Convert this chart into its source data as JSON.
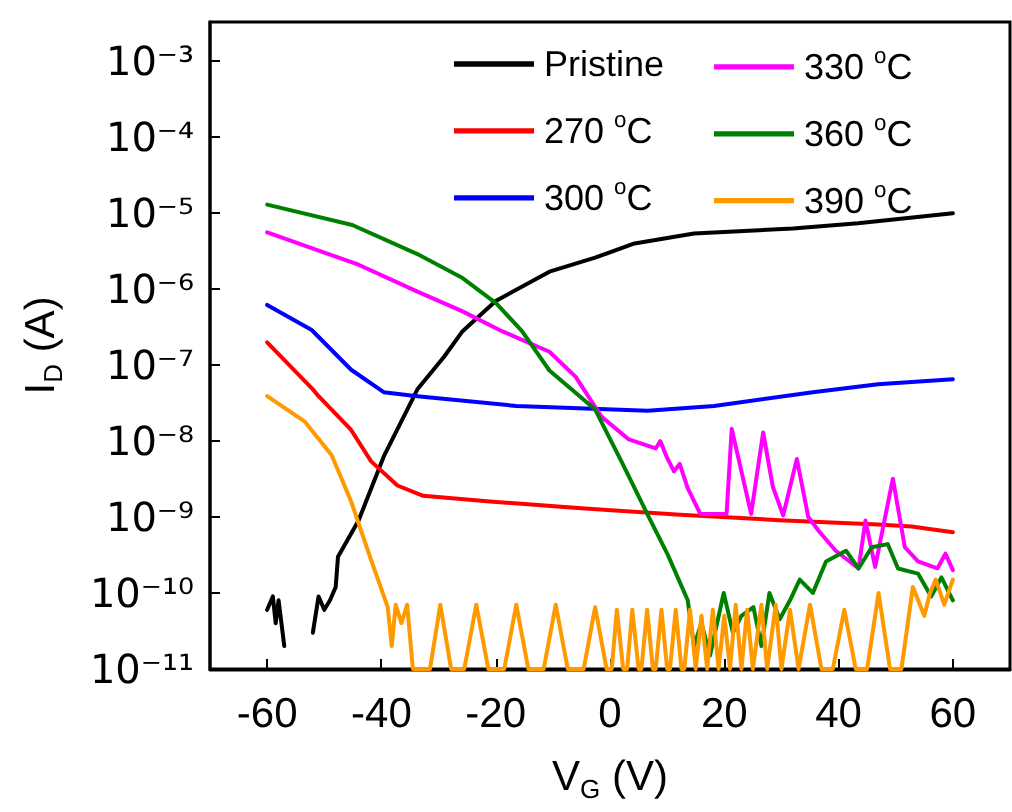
{
  "chart_data": {
    "type": "line",
    "xlabel": "V$_{G}$ (V)",
    "ylabel": "I$_{D}$ (A)",
    "log": "y",
    "grid": false,
    "legend": "top right",
    "marker": "none",
    "line_style": "solid",
    "xlim": [
      -70,
      70
    ],
    "xticks": [
      -60,
      -40,
      -20,
      0,
      20,
      40,
      60
    ],
    "ylim": [
      1e-11,
      0.0033
    ],
    "yticks": [
      {
        "value": 1e-11,
        "label": "10⁻¹¹"
      },
      {
        "value": 1e-10,
        "label": "10⁻¹⁰"
      },
      {
        "value": 1e-09,
        "label": "10⁻⁹"
      },
      {
        "value": 1e-08,
        "label": "10⁻⁸"
      },
      {
        "value": 1e-07,
        "label": "10⁻⁷"
      },
      {
        "value": 1e-06,
        "label": "10⁻⁶"
      },
      {
        "value": 1e-05,
        "label": "10⁻⁵"
      },
      {
        "value": 0.0001,
        "label": "10⁻⁴"
      },
      {
        "value": 0.001,
        "label": "10⁻³"
      }
    ],
    "series": [
      {
        "name": "Pristine",
        "color": "#000000",
        "x": [
          -60,
          -59,
          -58.5,
          -58,
          -57,
          -56.5,
          -52,
          -51,
          -50,
          -49,
          -48,
          -47.6,
          -44,
          -39.5,
          -33.7,
          -29,
          -25.8,
          -20,
          -10.6,
          -2.6,
          4.3,
          14.7,
          32,
          43.4,
          60
        ],
        "values": [
          6e-11,
          9e-11,
          4e-11,
          8e-11,
          2e-11,
          null,
          3e-11,
          9e-11,
          6e-11,
          8e-11,
          1.2e-10,
          3e-10,
          9e-10,
          6.5e-09,
          4.8e-08,
          1.3e-07,
          2.8e-07,
          7e-07,
          1.7e-06,
          2.6e-06,
          4e-06,
          5.4e-06,
          6.3e-06,
          7.4e-06,
          1e-05
        ]
      },
      {
        "name": "270 $^{o}$C",
        "color": "#ff0000",
        "x": [
          -60,
          -52,
          -51,
          -45.3,
          -41.8,
          -37.2,
          -32.7,
          -21,
          -5,
          12.3,
          29.6,
          46.9,
          52.8,
          60
        ],
        "values": [
          2e-07,
          4.8e-08,
          3.9e-08,
          1.4e-08,
          5.4e-09,
          2.6e-09,
          1.9e-09,
          1.6e-09,
          1.3e-09,
          1.07e-09,
          9.1e-10,
          8e-10,
          7.5e-10,
          6.3e-10
        ]
      },
      {
        "name": "300 $^{o}$C",
        "color": "#0000ff",
        "x": [
          -60,
          -52.2,
          -45.3,
          -39.6,
          -33.7,
          -16.4,
          6.6,
          18.2,
          35.5,
          46.9,
          60
        ],
        "values": [
          6.2e-07,
          2.9e-07,
          8.7e-08,
          4.4e-08,
          3.9e-08,
          2.9e-08,
          2.5e-08,
          2.9e-08,
          4.4e-08,
          5.6e-08,
          6.5e-08
        ]
      },
      {
        "name": "330 $^{o}$C",
        "color": "#ff00ff",
        "x": [
          -60,
          -44,
          -33.7,
          -25.8,
          -18.9,
          -10.6,
          -6,
          -1.5,
          3.3,
          8,
          8.8,
          10,
          11.2,
          12.2,
          13.6,
          15.8,
          20.4,
          21.3,
          24.7,
          26.8,
          28.5,
          30.3,
          32.7,
          34.7,
          36.5,
          39.5,
          43.5,
          44.7,
          46.4,
          49.5,
          51.6,
          53.9,
          57.3,
          58.7,
          60
        ],
        "values": [
          5.6e-06,
          2.1e-06,
          9.3e-07,
          5.1e-07,
          2.8e-07,
          1.5e-07,
          7e-08,
          2.1e-08,
          1.05e-08,
          8e-09,
          1e-08,
          6e-09,
          4e-09,
          5e-09,
          2.4e-09,
          1.1e-09,
          1.1e-09,
          1.45e-08,
          1.1e-09,
          1.3e-08,
          2.5e-09,
          1.05e-09,
          5.8e-09,
          1e-09,
          6.6e-10,
          3.6e-10,
          2.1e-10,
          9e-10,
          2.2e-10,
          3.2e-09,
          4e-10,
          2.6e-10,
          2.1e-10,
          3.3e-10,
          2e-10
        ]
      },
      {
        "name": "360 $^{o}$C",
        "color": "#008000",
        "x": [
          -60,
          -45.1,
          -33.7,
          -25.8,
          -19.9,
          -15.4,
          -10.6,
          -7,
          -2.6,
          2,
          6.6,
          10.1,
          13.6,
          14.7,
          16,
          17.5,
          19.9,
          21.5,
          23,
          25.1,
          26.5,
          27.9,
          29.7,
          31.5,
          33.2,
          35.5,
          37.8,
          41.3,
          43.5,
          45.8,
          48.6,
          50.4,
          53.9,
          56.2,
          58,
          60
        ],
        "values": [
          1.3e-05,
          7e-06,
          2.9e-06,
          1.4e-06,
          6.5e-07,
          2.8e-07,
          8.5e-08,
          5e-08,
          2.6e-08,
          5.4e-09,
          1.07e-09,
          3.2e-10,
          8e-11,
          2e-11,
          4e-11,
          1.5e-11,
          1e-10,
          3e-11,
          5e-11,
          6.5e-11,
          2e-11,
          1e-10,
          4.5e-11,
          8e-11,
          1.5e-10,
          1e-10,
          2.6e-10,
          3.6e-10,
          2.1e-10,
          4e-10,
          4.4e-10,
          2.1e-10,
          1.8e-10,
          9e-11,
          1.6e-10,
          8e-11
        ]
      },
      {
        "name": "390 $^{o}$C",
        "color": "#ff9900",
        "x": [
          -60,
          -53.4,
          -48.7,
          -45.3,
          -41.8,
          -38.9,
          -38.2,
          -37.5,
          -36.5,
          -35.5,
          -34.5,
          -31.5,
          -29.7,
          -27.8,
          -25.5,
          -23.4,
          -21.3,
          -18.5,
          -16.4,
          -14.3,
          -11.6,
          -9.5,
          -7.4,
          -4.6,
          -2.6,
          -0.6,
          0.3,
          1.2,
          2.3,
          3,
          3.9,
          5,
          5.5,
          6.5,
          7.5,
          8,
          9,
          10,
          10.5,
          11.5,
          12.5,
          13,
          14,
          15,
          16,
          17,
          18,
          19,
          20,
          21,
          22,
          23,
          24,
          25,
          26.5,
          27.5,
          29,
          30,
          31.5,
          33,
          35,
          37,
          39,
          41,
          43,
          45,
          47,
          49,
          51,
          53,
          55,
          56,
          57,
          58.5,
          60
        ],
        "values": [
          3.9e-08,
          1.8e-08,
          6.5e-09,
          1.6e-09,
          2.7e-10,
          6.5e-11,
          2e-11,
          7e-11,
          4e-11,
          7e-11,
          1e-11,
          1e-11,
          7e-11,
          1e-11,
          1e-11,
          7e-11,
          1e-11,
          1e-11,
          7e-11,
          1e-11,
          1e-11,
          7e-11,
          1e-11,
          1e-11,
          6.5e-11,
          1e-11,
          1e-11,
          6e-11,
          1e-11,
          1e-11,
          6e-11,
          1e-11,
          1e-11,
          6e-11,
          1e-11,
          1e-11,
          6e-11,
          1e-11,
          1e-11,
          6e-11,
          1e-11,
          1e-11,
          6e-11,
          1e-11,
          5e-11,
          1e-11,
          6e-11,
          1e-11,
          5e-11,
          1e-11,
          7e-11,
          1e-11,
          6e-11,
          1e-11,
          7e-11,
          1e-11,
          7e-11,
          1e-11,
          6e-11,
          1e-11,
          7e-11,
          1e-11,
          1e-11,
          6e-11,
          1e-11,
          1e-11,
          1e-10,
          1e-11,
          1e-11,
          1.2e-10,
          5e-11,
          1e-10,
          1.5e-10,
          7e-11,
          1.5e-10
        ]
      }
    ]
  }
}
